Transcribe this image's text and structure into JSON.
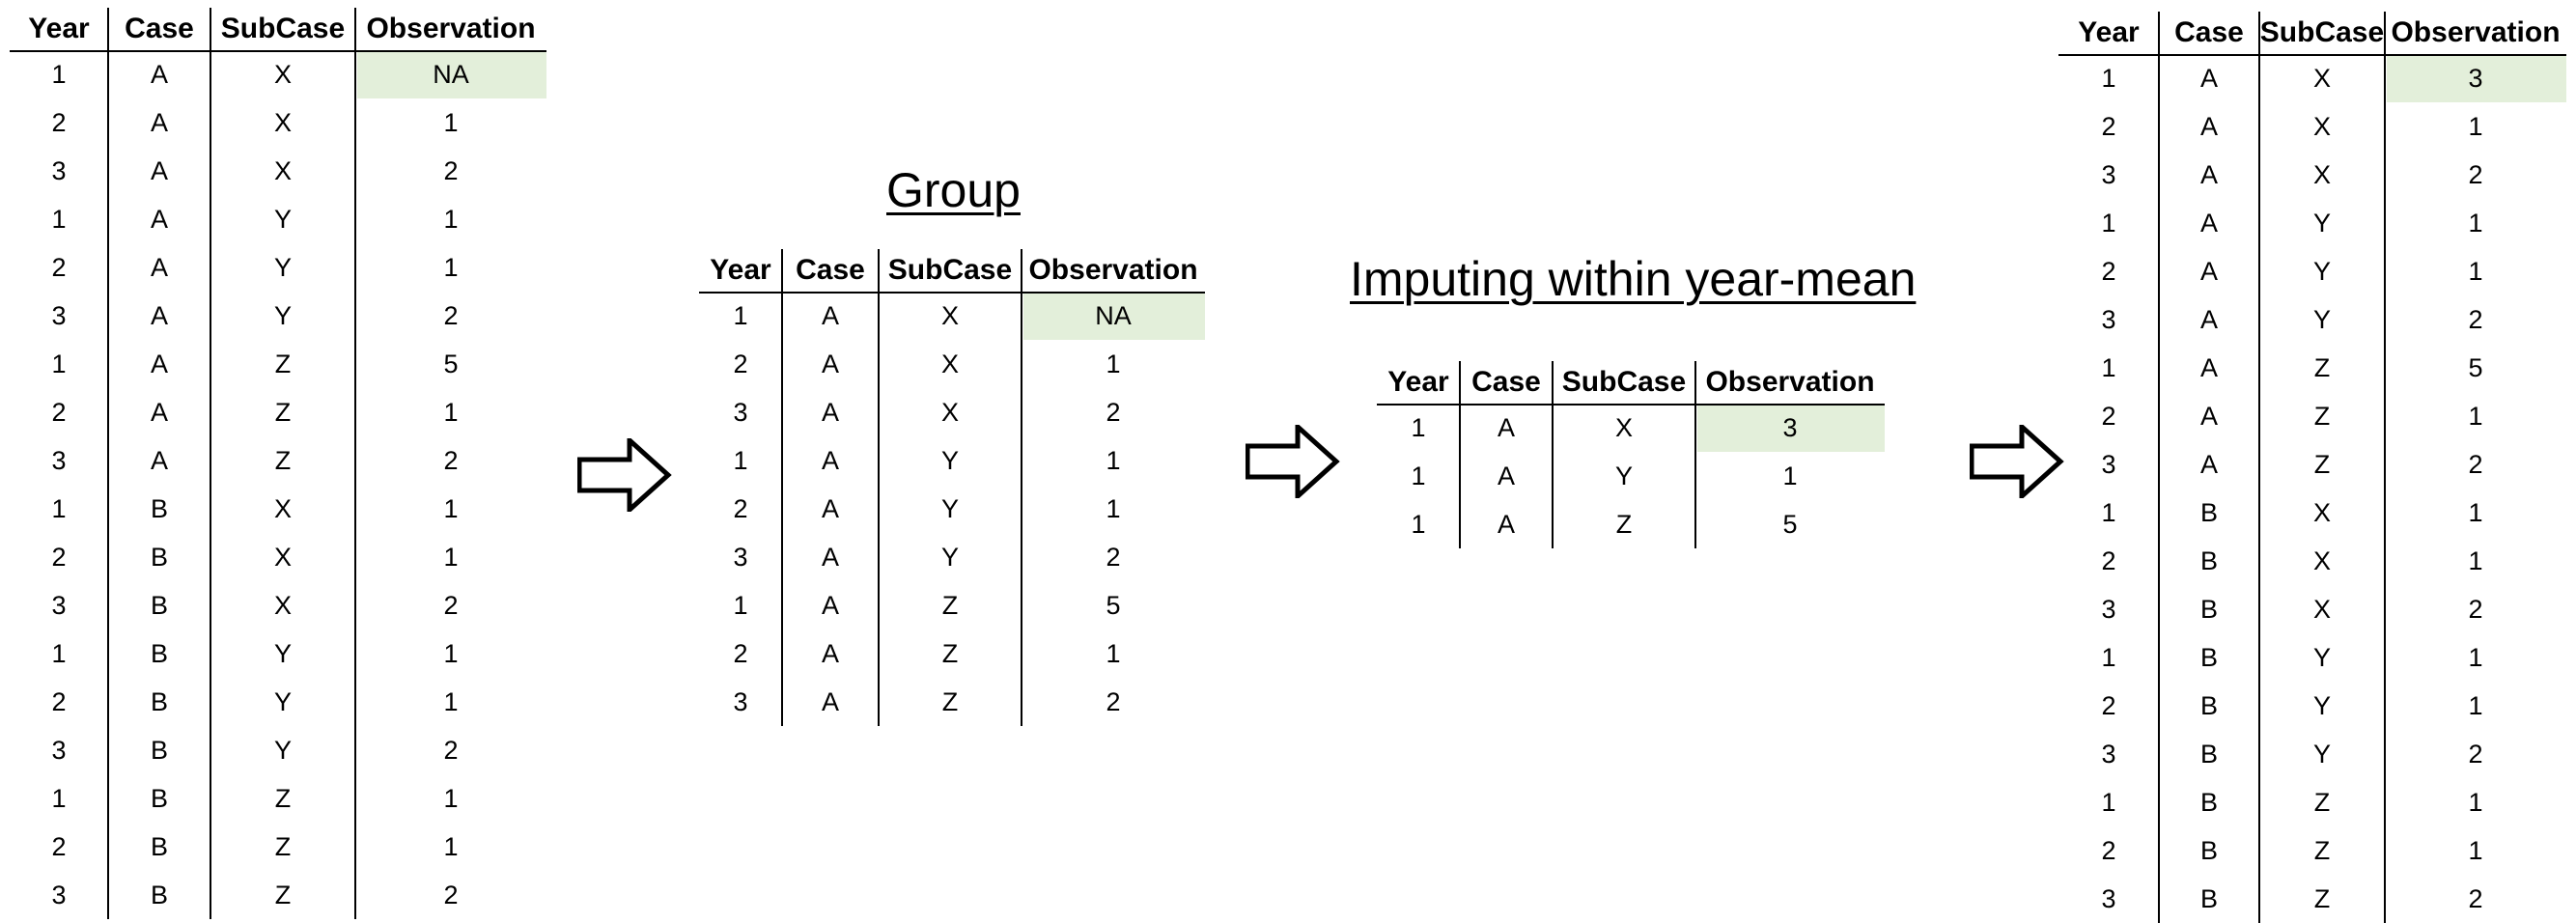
{
  "columns": [
    "Year",
    "Case",
    "SubCase",
    "Observation"
  ],
  "highlight_color": "#e3efda",
  "full_table": {
    "rows": [
      [
        "1",
        "A",
        "X",
        "NA"
      ],
      [
        "2",
        "A",
        "X",
        "1"
      ],
      [
        "3",
        "A",
        "X",
        "2"
      ],
      [
        "1",
        "A",
        "Y",
        "1"
      ],
      [
        "2",
        "A",
        "Y",
        "1"
      ],
      [
        "3",
        "A",
        "Y",
        "2"
      ],
      [
        "1",
        "A",
        "Z",
        "5"
      ],
      [
        "2",
        "A",
        "Z",
        "1"
      ],
      [
        "3",
        "A",
        "Z",
        "2"
      ],
      [
        "1",
        "B",
        "X",
        "1"
      ],
      [
        "2",
        "B",
        "X",
        "1"
      ],
      [
        "3",
        "B",
        "X",
        "2"
      ],
      [
        "1",
        "B",
        "Y",
        "1"
      ],
      [
        "2",
        "B",
        "Y",
        "1"
      ],
      [
        "3",
        "B",
        "Y",
        "2"
      ],
      [
        "1",
        "B",
        "Z",
        "1"
      ],
      [
        "2",
        "B",
        "Z",
        "1"
      ],
      [
        "3",
        "B",
        "Z",
        "2"
      ]
    ]
  },
  "group_section": {
    "title": "Group",
    "rows": [
      [
        "1",
        "A",
        "X",
        "NA"
      ],
      [
        "2",
        "A",
        "X",
        "1"
      ],
      [
        "3",
        "A",
        "X",
        "2"
      ],
      [
        "1",
        "A",
        "Y",
        "1"
      ],
      [
        "2",
        "A",
        "Y",
        "1"
      ],
      [
        "3",
        "A",
        "Y",
        "2"
      ],
      [
        "1",
        "A",
        "Z",
        "5"
      ],
      [
        "2",
        "A",
        "Z",
        "1"
      ],
      [
        "3",
        "A",
        "Z",
        "2"
      ]
    ]
  },
  "impute_section": {
    "title": "Imputing within year-mean",
    "rows": [
      [
        "1",
        "A",
        "X",
        "3"
      ],
      [
        "1",
        "A",
        "Y",
        "1"
      ],
      [
        "1",
        "A",
        "Z",
        "5"
      ]
    ]
  },
  "result_table": {
    "rows": [
      [
        "1",
        "A",
        "X",
        "3"
      ],
      [
        "2",
        "A",
        "X",
        "1"
      ],
      [
        "3",
        "A",
        "X",
        "2"
      ],
      [
        "1",
        "A",
        "Y",
        "1"
      ],
      [
        "2",
        "A",
        "Y",
        "1"
      ],
      [
        "3",
        "A",
        "Y",
        "2"
      ],
      [
        "1",
        "A",
        "Z",
        "5"
      ],
      [
        "2",
        "A",
        "Z",
        "1"
      ],
      [
        "3",
        "A",
        "Z",
        "2"
      ],
      [
        "1",
        "B",
        "X",
        "1"
      ],
      [
        "2",
        "B",
        "X",
        "1"
      ],
      [
        "3",
        "B",
        "X",
        "2"
      ],
      [
        "1",
        "B",
        "Y",
        "1"
      ],
      [
        "2",
        "B",
        "Y",
        "1"
      ],
      [
        "3",
        "B",
        "Y",
        "2"
      ],
      [
        "1",
        "B",
        "Z",
        "1"
      ],
      [
        "2",
        "B",
        "Z",
        "1"
      ],
      [
        "3",
        "B",
        "Z",
        "2"
      ]
    ]
  },
  "arrows": [
    "right-arrow-icon",
    "right-arrow-icon",
    "right-arrow-icon"
  ]
}
